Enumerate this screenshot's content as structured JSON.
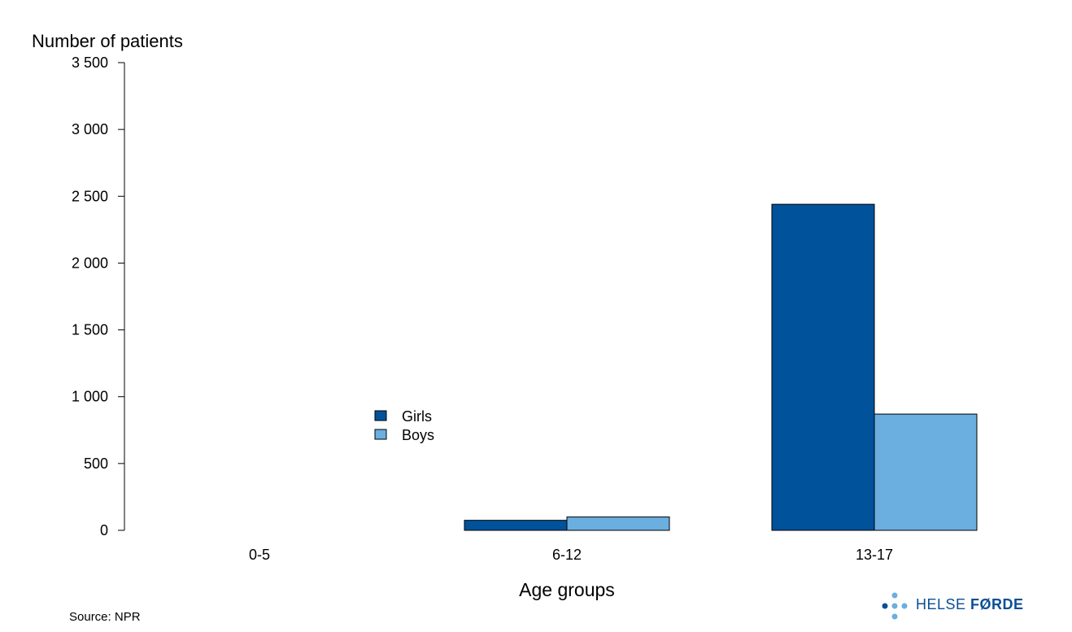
{
  "chart_data": {
    "type": "bar",
    "title": "",
    "ylabel": "Number of patients",
    "xlabel": "Age groups",
    "categories": [
      "0-5",
      "6-12",
      "13-17"
    ],
    "series": [
      {
        "name": "Girls",
        "values": [
          0,
          75,
          2440
        ],
        "color": "#00529b"
      },
      {
        "name": "Boys",
        "values": [
          0,
          100,
          870
        ],
        "color": "#6baee0"
      }
    ],
    "ylim": [
      0,
      3500
    ],
    "yticks": [
      0,
      500,
      1000,
      1500,
      2000,
      2500,
      3000,
      3500
    ],
    "ytick_labels": [
      "0",
      "500",
      "1 000",
      "1 500",
      "2 000",
      "2 500",
      "3 000",
      "3 500"
    ],
    "grid": false,
    "legend_position": "center"
  },
  "source": "Source: NPR",
  "logo": {
    "text_light": "HELSE",
    "text_bold": "FØRDE",
    "color": "#0a4f94"
  }
}
